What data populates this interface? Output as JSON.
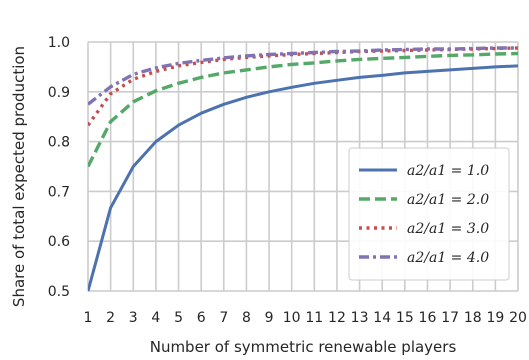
{
  "chart_data": {
    "type": "line",
    "title": "",
    "xlabel": "Number of symmetric renewable players",
    "ylabel": "Share of total expected production",
    "xlim": [
      1,
      20
    ],
    "ylim": [
      0.5,
      1.0
    ],
    "x_ticks": [
      1,
      2,
      3,
      4,
      5,
      6,
      7,
      8,
      9,
      10,
      11,
      12,
      13,
      14,
      15,
      16,
      17,
      18,
      19,
      20
    ],
    "y_ticks": [
      "0.5",
      "0.6",
      "0.7",
      "0.8",
      "0.9",
      "1.0"
    ],
    "grid": true,
    "legend_position": "lower-right",
    "x": [
      1,
      2,
      3,
      4,
      5,
      6,
      7,
      8,
      9,
      10,
      11,
      12,
      13,
      14,
      15,
      16,
      17,
      18,
      19,
      20
    ],
    "series": [
      {
        "name": "a2/a1 = 1.0",
        "color": "#4c72b0",
        "style": "solid",
        "values": [
          0.5,
          0.667,
          0.75,
          0.8,
          0.833,
          0.857,
          0.875,
          0.889,
          0.9,
          0.909,
          0.917,
          0.923,
          0.929,
          0.933,
          0.938,
          0.941,
          0.944,
          0.947,
          0.95,
          0.952
        ]
      },
      {
        "name": "a2/a1 = 2.0",
        "color": "#55a868",
        "style": "dashed",
        "values": [
          0.75,
          0.84,
          0.88,
          0.902,
          0.917,
          0.929,
          0.938,
          0.944,
          0.95,
          0.955,
          0.958,
          0.962,
          0.965,
          0.967,
          0.969,
          0.971,
          0.973,
          0.974,
          0.976,
          0.977
        ]
      },
      {
        "name": "a2/a1 = 3.0",
        "color": "#c44e52",
        "style": "dotted",
        "values": [
          0.833,
          0.896,
          0.925,
          0.941,
          0.952,
          0.959,
          0.965,
          0.969,
          0.972,
          0.975,
          0.977,
          0.979,
          0.981,
          0.982,
          0.983,
          0.984,
          0.985,
          0.986,
          0.987,
          0.988
        ]
      },
      {
        "name": "a2/a1 = 4.0",
        "color": "#8172b2",
        "style": "dashdot",
        "values": [
          0.875,
          0.91,
          0.935,
          0.948,
          0.957,
          0.963,
          0.968,
          0.972,
          0.975,
          0.977,
          0.979,
          0.981,
          0.982,
          0.984,
          0.985,
          0.986,
          0.986,
          0.987,
          0.988,
          0.988
        ]
      }
    ]
  }
}
